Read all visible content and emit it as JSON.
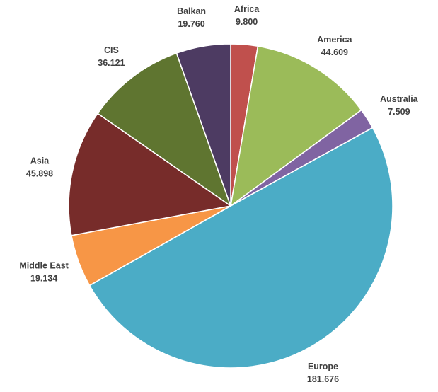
{
  "chart_data": {
    "type": "pie",
    "title": "",
    "start_angle_deg": 0,
    "direction": "clockwise",
    "slice_border_color": "#ffffff",
    "legend": "none (labels outside slices)",
    "slices": [
      {
        "label": "Africa",
        "value_label": "9.800",
        "value": 9.8,
        "color": "#C0504D"
      },
      {
        "label": "America",
        "value_label": "44.609",
        "value": 44.609,
        "color": "#9BBB59"
      },
      {
        "label": "Australia",
        "value_label": "7.509",
        "value": 7.509,
        "color": "#8064A2"
      },
      {
        "label": "Europe",
        "value_label": "181.676",
        "value": 181.676,
        "color": "#4BACC6"
      },
      {
        "label": "Middle East",
        "value_label": "19.134",
        "value": 19.134,
        "color": "#F79646"
      },
      {
        "label": "Asia",
        "value_label": "45.898",
        "value": 45.898,
        "color": "#772C2A"
      },
      {
        "label": "CIS",
        "value_label": "36.121",
        "value": 36.121,
        "color": "#5F7530"
      },
      {
        "label": "Balkan",
        "value_label": "19.760",
        "value": 19.76,
        "color": "#4D3B62"
      }
    ]
  }
}
